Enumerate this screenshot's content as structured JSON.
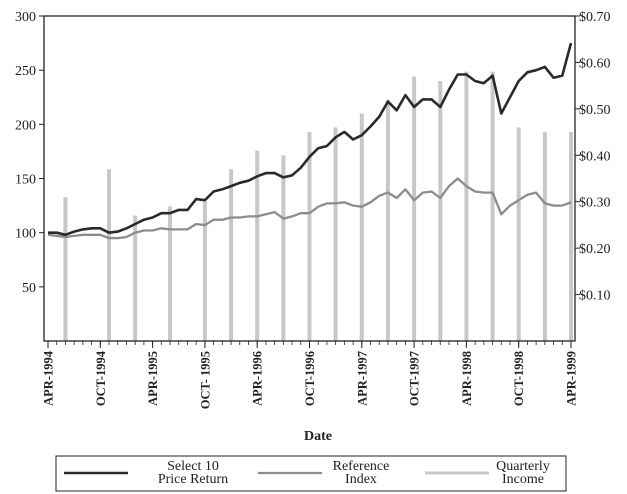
{
  "chart_data": {
    "type": "line",
    "xlabel": "Date",
    "x_tick_labels": [
      "APR-1994",
      "OCT-1994",
      "APR-1995",
      "OCT- 1995",
      "APR-1996",
      "OCT-1996",
      "APR-1997",
      "OCT-1997",
      "APR-1998",
      "OCT-1998",
      "APR-1999"
    ],
    "y_left": {
      "lim": [
        0,
        300
      ],
      "ticks": [
        "50",
        "100",
        "150",
        "200",
        "250",
        "300"
      ]
    },
    "y_right": {
      "lim": [
        0,
        0.7
      ],
      "ticks": [
        "$0.10",
        "$0.20",
        "$0.30",
        "$0.40",
        "$0.50",
        "$0.60",
        "$0.70"
      ]
    },
    "legend_position": "bottom",
    "grid": false,
    "series": [
      {
        "name": "Select 10 Price Return",
        "name_lines": [
          "Select 10",
          "Price Return"
        ],
        "axis": "left",
        "style": "line",
        "color": "#2a2a2a",
        "x": [
          "1994-04",
          "1994-05",
          "1994-06",
          "1994-07",
          "1994-08",
          "1994-09",
          "1994-10",
          "1994-11",
          "1994-12",
          "1995-01",
          "1995-02",
          "1995-03",
          "1995-04",
          "1995-05",
          "1995-06",
          "1995-07",
          "1995-08",
          "1995-09",
          "1995-10",
          "1995-11",
          "1995-12",
          "1996-01",
          "1996-02",
          "1996-03",
          "1996-04",
          "1996-05",
          "1996-06",
          "1996-07",
          "1996-08",
          "1996-09",
          "1996-10",
          "1996-11",
          "1996-12",
          "1997-01",
          "1997-02",
          "1997-03",
          "1997-04",
          "1997-05",
          "1997-06",
          "1997-07",
          "1997-08",
          "1997-09",
          "1997-10",
          "1997-11",
          "1997-12",
          "1998-01",
          "1998-02",
          "1998-03",
          "1998-04",
          "1998-05",
          "1998-06",
          "1998-07",
          "1998-08",
          "1998-09",
          "1998-10",
          "1998-11",
          "1998-12",
          "1999-01",
          "1999-02",
          "1999-03",
          "1999-04"
        ],
        "values": [
          100,
          100,
          98,
          101,
          103,
          104,
          104,
          100,
          101,
          104,
          108,
          112,
          114,
          118,
          118,
          121,
          121,
          131,
          130,
          138,
          140,
          143,
          146,
          148,
          152,
          155,
          155,
          151,
          153,
          160,
          170,
          178,
          180,
          188,
          193,
          186,
          190,
          198,
          207,
          221,
          213,
          227,
          216,
          223,
          223,
          216,
          232,
          246,
          246,
          240,
          238,
          245,
          210,
          225,
          240,
          248,
          250,
          253,
          243,
          245,
          275
        ]
      },
      {
        "name": "Reference Index",
        "name_lines": [
          "Reference",
          "Index"
        ],
        "axis": "left",
        "style": "line",
        "color": "#8c8c8c",
        "x": [
          "1994-04",
          "1994-05",
          "1994-06",
          "1994-07",
          "1994-08",
          "1994-09",
          "1994-10",
          "1994-11",
          "1994-12",
          "1995-01",
          "1995-02",
          "1995-03",
          "1995-04",
          "1995-05",
          "1995-06",
          "1995-07",
          "1995-08",
          "1995-09",
          "1995-10",
          "1995-11",
          "1995-12",
          "1996-01",
          "1996-02",
          "1996-03",
          "1996-04",
          "1996-05",
          "1996-06",
          "1996-07",
          "1996-08",
          "1996-09",
          "1996-10",
          "1996-11",
          "1996-12",
          "1997-01",
          "1997-02",
          "1997-03",
          "1997-04",
          "1997-05",
          "1997-06",
          "1997-07",
          "1997-08",
          "1997-09",
          "1997-10",
          "1997-11",
          "1997-12",
          "1998-01",
          "1998-02",
          "1998-03",
          "1998-04",
          "1998-05",
          "1998-06",
          "1998-07",
          "1998-08",
          "1998-09",
          "1998-10",
          "1998-11",
          "1998-12",
          "1999-01",
          "1999-02",
          "1999-03",
          "1999-04"
        ],
        "values": [
          98,
          97,
          96,
          97,
          98,
          98,
          98,
          95,
          95,
          96,
          100,
          102,
          102,
          104,
          103,
          103,
          103,
          108,
          107,
          112,
          112,
          114,
          114,
          115,
          115,
          117,
          119,
          113,
          115,
          118,
          118,
          124,
          127,
          127,
          128,
          125,
          124,
          128,
          134,
          137,
          132,
          140,
          130,
          137,
          138,
          132,
          143,
          150,
          143,
          138,
          137,
          137,
          117,
          125,
          130,
          135,
          137,
          127,
          125,
          125,
          128
        ]
      },
      {
        "name": "Quarterly Income",
        "name_lines": [
          "Quarterly",
          "Income"
        ],
        "axis": "right",
        "style": "bar",
        "color": "#c8c8c8",
        "x": [
          "1994-06",
          "1994-11",
          "1995-02",
          "1995-06",
          "1995-10",
          "1996-01",
          "1996-04",
          "1996-07",
          "1996-10",
          "1997-01",
          "1997-04",
          "1997-07",
          "1997-10",
          "1998-01",
          "1998-04",
          "1998-07",
          "1998-10",
          "1999-01",
          "1999-04"
        ],
        "values": [
          0.31,
          0.37,
          0.27,
          0.29,
          0.3,
          0.37,
          0.41,
          0.4,
          0.45,
          0.46,
          0.49,
          0.52,
          0.57,
          0.56,
          0.58,
          0.58,
          0.46,
          0.45,
          0.45
        ]
      }
    ]
  }
}
